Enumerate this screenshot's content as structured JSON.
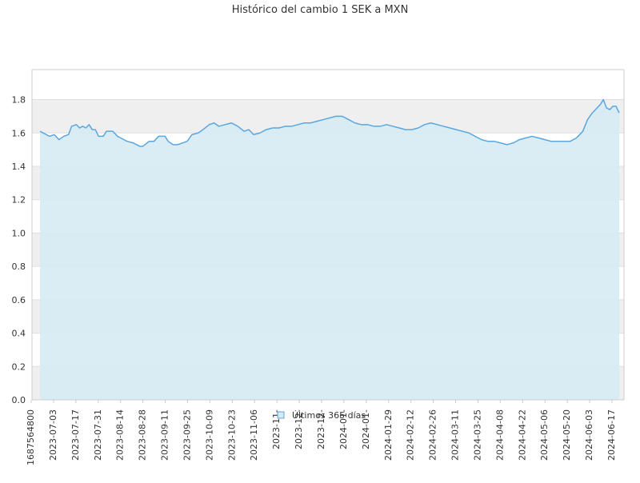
{
  "chart_data": {
    "type": "area",
    "title": "Histórico del cambio 1 SEK a MXN",
    "xlabel": "",
    "ylabel": "",
    "ylim": [
      0,
      1.8
    ],
    "yticks": [
      0.0,
      0.2,
      0.4,
      0.6,
      0.8,
      1.0,
      1.2,
      1.4,
      1.6,
      1.8
    ],
    "ytick_labels": [
      "0.0",
      "0.2",
      "0.4",
      "0.6",
      "0.8",
      "1.0",
      "1.2",
      "1.4",
      "1.6",
      "1.8"
    ],
    "xtick_labels": [
      "1687564800",
      "2023-07-03",
      "2023-07-17",
      "2023-07-31",
      "2023-08-14",
      "2023-08-28",
      "2023-09-11",
      "2023-09-25",
      "2023-10-09",
      "2023-10-23",
      "2023-11-06",
      "2023-11-",
      "2023-12-",
      "2023-12-",
      "2024-01-",
      "2024-01-",
      "2024-01-29",
      "2024-02-12",
      "2024-02-26",
      "2024-03-11",
      "2024-03-25",
      "2024-04-08",
      "2024-04-22",
      "2024-05-06",
      "2024-05-20",
      "2024-06-03",
      "2024-06-17"
    ],
    "grid": true,
    "legend_position": "bottom-center",
    "colors": {
      "line": "#5aa6df",
      "fill": "#d6eaf3",
      "band_alt": "#efefef",
      "gridline": "#dfdfdf",
      "axis": "#cccccc",
      "text": "#333333"
    },
    "series": [
      {
        "name": "Últimos 365 días",
        "points": [
          [
            "2023-06-24",
            1.61
          ],
          [
            "2023-06-30",
            1.58
          ],
          [
            "2023-07-03",
            1.59
          ],
          [
            "2023-07-06",
            1.56
          ],
          [
            "2023-07-09",
            1.58
          ],
          [
            "2023-07-12",
            1.59
          ],
          [
            "2023-07-14",
            1.64
          ],
          [
            "2023-07-17",
            1.65
          ],
          [
            "2023-07-19",
            1.63
          ],
          [
            "2023-07-21",
            1.64
          ],
          [
            "2023-07-23",
            1.63
          ],
          [
            "2023-07-25",
            1.65
          ],
          [
            "2023-07-27",
            1.62
          ],
          [
            "2023-07-29",
            1.62
          ],
          [
            "2023-07-31",
            1.58
          ],
          [
            "2023-08-03",
            1.58
          ],
          [
            "2023-08-05",
            1.61
          ],
          [
            "2023-08-09",
            1.61
          ],
          [
            "2023-08-12",
            1.58
          ],
          [
            "2023-08-14",
            1.57
          ],
          [
            "2023-08-18",
            1.55
          ],
          [
            "2023-08-22",
            1.54
          ],
          [
            "2023-08-26",
            1.52
          ],
          [
            "2023-08-28",
            1.52
          ],
          [
            "2023-09-01",
            1.55
          ],
          [
            "2023-09-04",
            1.55
          ],
          [
            "2023-09-07",
            1.58
          ],
          [
            "2023-09-11",
            1.58
          ],
          [
            "2023-09-13",
            1.55
          ],
          [
            "2023-09-16",
            1.53
          ],
          [
            "2023-09-19",
            1.53
          ],
          [
            "2023-09-22",
            1.54
          ],
          [
            "2023-09-25",
            1.55
          ],
          [
            "2023-09-28",
            1.59
          ],
          [
            "2023-10-02",
            1.6
          ],
          [
            "2023-10-05",
            1.62
          ],
          [
            "2023-10-09",
            1.65
          ],
          [
            "2023-10-12",
            1.66
          ],
          [
            "2023-10-15",
            1.64
          ],
          [
            "2023-10-19",
            1.65
          ],
          [
            "2023-10-23",
            1.66
          ],
          [
            "2023-10-27",
            1.64
          ],
          [
            "2023-10-31",
            1.61
          ],
          [
            "2023-11-03",
            1.62
          ],
          [
            "2023-11-06",
            1.59
          ],
          [
            "2023-11-10",
            1.6
          ],
          [
            "2023-11-14",
            1.62
          ],
          [
            "2023-11-18",
            1.63
          ],
          [
            "2023-11-22",
            1.63
          ],
          [
            "2023-11-26",
            1.64
          ],
          [
            "2023-11-30",
            1.64
          ],
          [
            "2023-12-04",
            1.65
          ],
          [
            "2023-12-08",
            1.66
          ],
          [
            "2023-12-12",
            1.66
          ],
          [
            "2023-12-16",
            1.67
          ],
          [
            "2023-12-20",
            1.68
          ],
          [
            "2023-12-24",
            1.69
          ],
          [
            "2023-12-28",
            1.7
          ],
          [
            "2024-01-01",
            1.7
          ],
          [
            "2024-01-05",
            1.68
          ],
          [
            "2024-01-09",
            1.66
          ],
          [
            "2024-01-13",
            1.65
          ],
          [
            "2024-01-17",
            1.65
          ],
          [
            "2024-01-21",
            1.64
          ],
          [
            "2024-01-25",
            1.64
          ],
          [
            "2024-01-29",
            1.65
          ],
          [
            "2024-02-02",
            1.64
          ],
          [
            "2024-02-06",
            1.63
          ],
          [
            "2024-02-10",
            1.62
          ],
          [
            "2024-02-14",
            1.62
          ],
          [
            "2024-02-18",
            1.63
          ],
          [
            "2024-02-22",
            1.65
          ],
          [
            "2024-02-26",
            1.66
          ],
          [
            "2024-03-01",
            1.65
          ],
          [
            "2024-03-05",
            1.64
          ],
          [
            "2024-03-09",
            1.63
          ],
          [
            "2024-03-13",
            1.62
          ],
          [
            "2024-03-17",
            1.61
          ],
          [
            "2024-03-21",
            1.6
          ],
          [
            "2024-03-25",
            1.58
          ],
          [
            "2024-03-29",
            1.56
          ],
          [
            "2024-04-02",
            1.55
          ],
          [
            "2024-04-06",
            1.55
          ],
          [
            "2024-04-10",
            1.54
          ],
          [
            "2024-04-14",
            1.53
          ],
          [
            "2024-04-18",
            1.54
          ],
          [
            "2024-04-22",
            1.56
          ],
          [
            "2024-04-26",
            1.57
          ],
          [
            "2024-04-30",
            1.58
          ],
          [
            "2024-05-04",
            1.57
          ],
          [
            "2024-05-08",
            1.56
          ],
          [
            "2024-05-12",
            1.55
          ],
          [
            "2024-05-16",
            1.55
          ],
          [
            "2024-05-20",
            1.55
          ],
          [
            "2024-05-24",
            1.55
          ],
          [
            "2024-05-28",
            1.57
          ],
          [
            "2024-06-01",
            1.61
          ],
          [
            "2024-06-04",
            1.68
          ],
          [
            "2024-06-07",
            1.72
          ],
          [
            "2024-06-10",
            1.75
          ],
          [
            "2024-06-12",
            1.77
          ],
          [
            "2024-06-14",
            1.8
          ],
          [
            "2024-06-16",
            1.75
          ],
          [
            "2024-06-18",
            1.74
          ],
          [
            "2024-06-20",
            1.76
          ],
          [
            "2024-06-22",
            1.76
          ],
          [
            "2024-06-24",
            1.72
          ]
        ]
      }
    ]
  }
}
